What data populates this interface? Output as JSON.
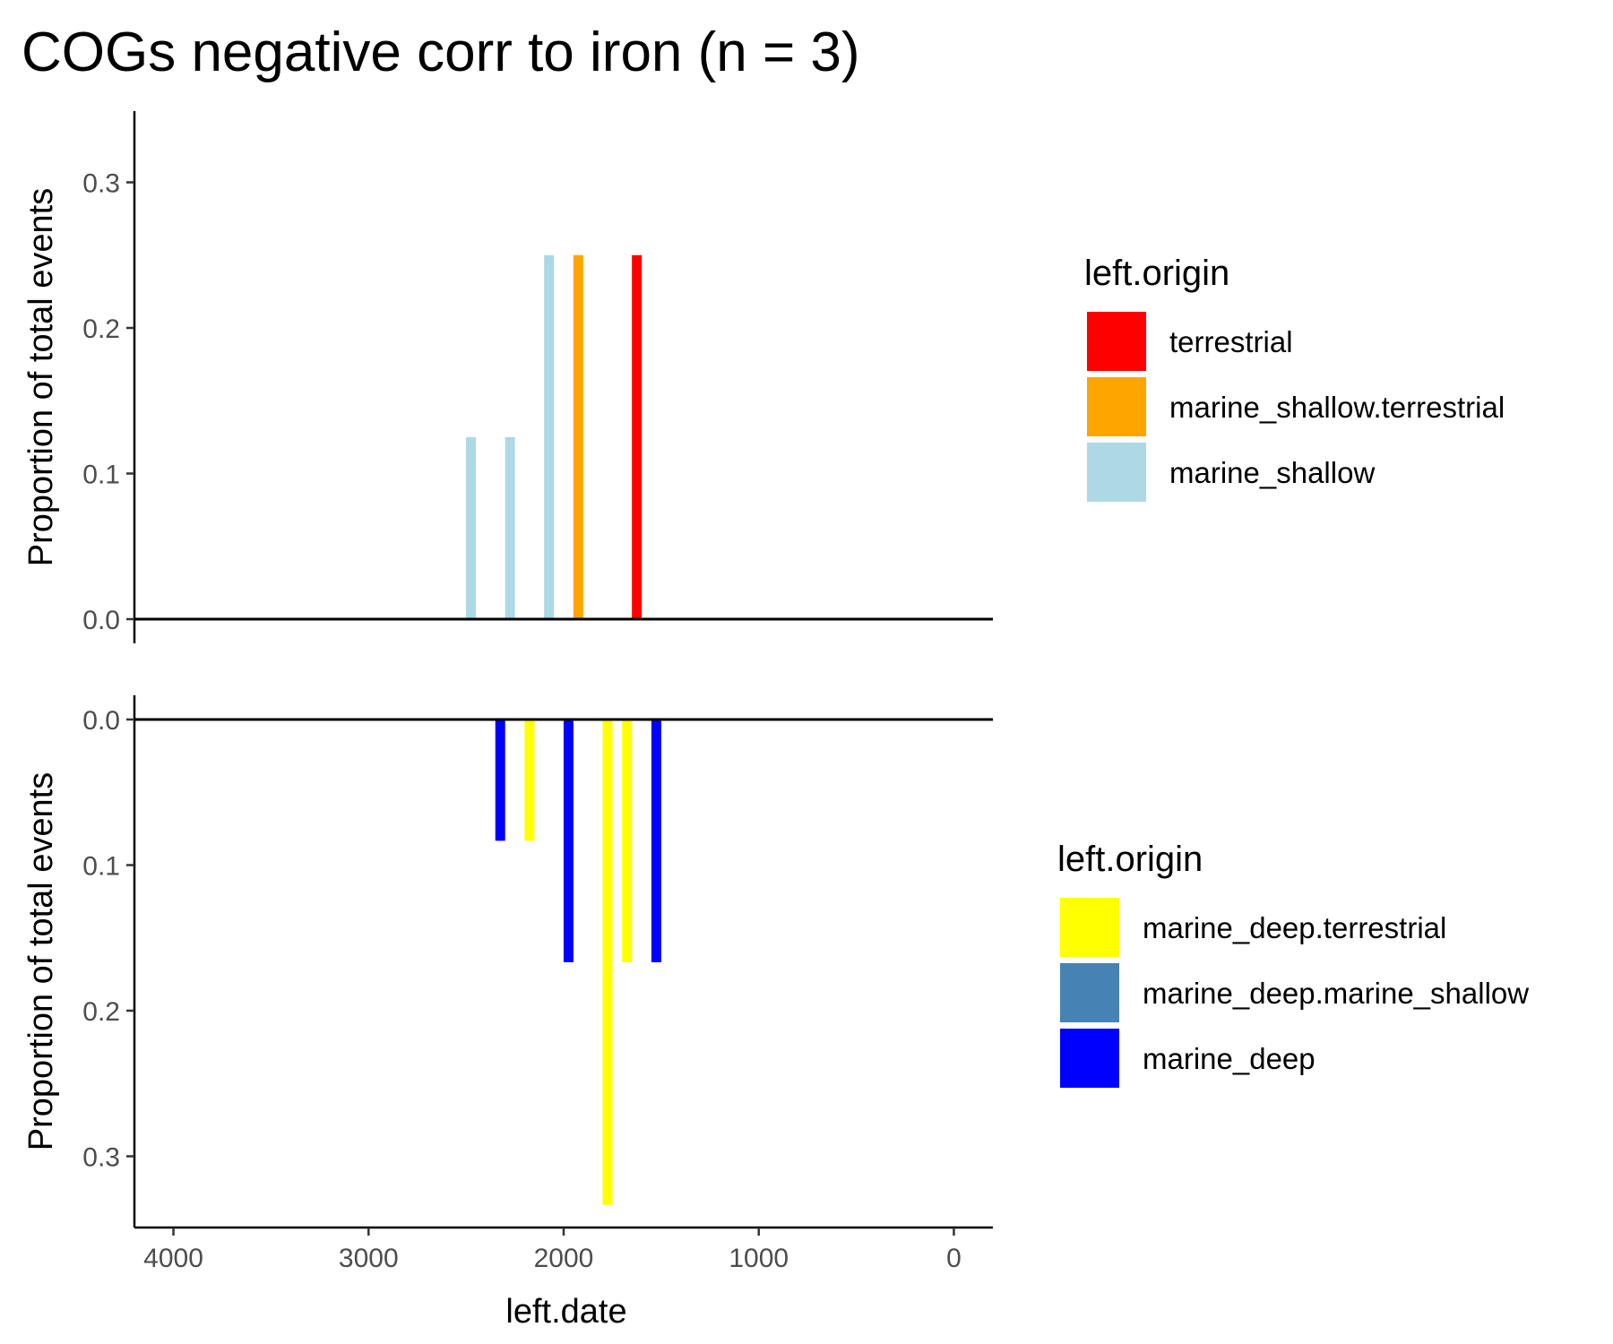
{
  "chart_data": {
    "type": "bar",
    "title": "COGs negative corr to iron (n = 3)",
    "xlabel": "left.date",
    "x_ticks": [
      4000,
      3000,
      2000,
      1000,
      0
    ],
    "x_axis_reversed": true,
    "xlim": [
      4200,
      -200
    ],
    "panels": [
      {
        "ylabel": "Proportion of total events",
        "ylim": [
          0,
          0.35
        ],
        "y_ticks": [
          "0.0",
          "0.1",
          "0.2",
          "0.3"
        ],
        "y_reversed": false,
        "legend": {
          "title": "left.origin",
          "position": "right",
          "entries": [
            {
              "name": "terrestrial",
              "color": "#ff0000"
            },
            {
              "name": "marine_shallow.terrestrial",
              "color": "#ffa500"
            },
            {
              "name": "marine_shallow",
              "color": "#add8e6"
            }
          ]
        },
        "bars": [
          {
            "x": 2475,
            "y": 0.125,
            "series": "marine_shallow"
          },
          {
            "x": 2275,
            "y": 0.125,
            "series": "marine_shallow"
          },
          {
            "x": 2075,
            "y": 0.25,
            "series": "marine_shallow"
          },
          {
            "x": 1925,
            "y": 0.25,
            "series": "marine_shallow.terrestrial"
          },
          {
            "x": 1625,
            "y": 0.25,
            "series": "terrestrial"
          }
        ]
      },
      {
        "ylabel": "Proportion of total events",
        "ylim": [
          0,
          0.35
        ],
        "y_ticks": [
          "0.0",
          "0.1",
          "0.2",
          "0.3"
        ],
        "y_reversed": true,
        "legend": {
          "title": "left.origin",
          "position": "right",
          "entries": [
            {
              "name": "marine_deep.terrestrial",
              "color": "#ffff00"
            },
            {
              "name": "marine_deep.marine_shallow",
              "color": "#4682b4"
            },
            {
              "name": "marine_deep",
              "color": "#0000ff"
            }
          ]
        },
        "bars": [
          {
            "x": 2325,
            "y": 0.0833,
            "series": "marine_deep"
          },
          {
            "x": 2175,
            "y": 0.0833,
            "series": "marine_deep.terrestrial"
          },
          {
            "x": 1975,
            "y": 0.1667,
            "series": "marine_deep"
          },
          {
            "x": 1775,
            "y": 0.3333,
            "series": "marine_deep.terrestrial"
          },
          {
            "x": 1675,
            "y": 0.1667,
            "series": "marine_deep.terrestrial"
          },
          {
            "x": 1525,
            "y": 0.1667,
            "series": "marine_deep"
          }
        ]
      }
    ]
  }
}
